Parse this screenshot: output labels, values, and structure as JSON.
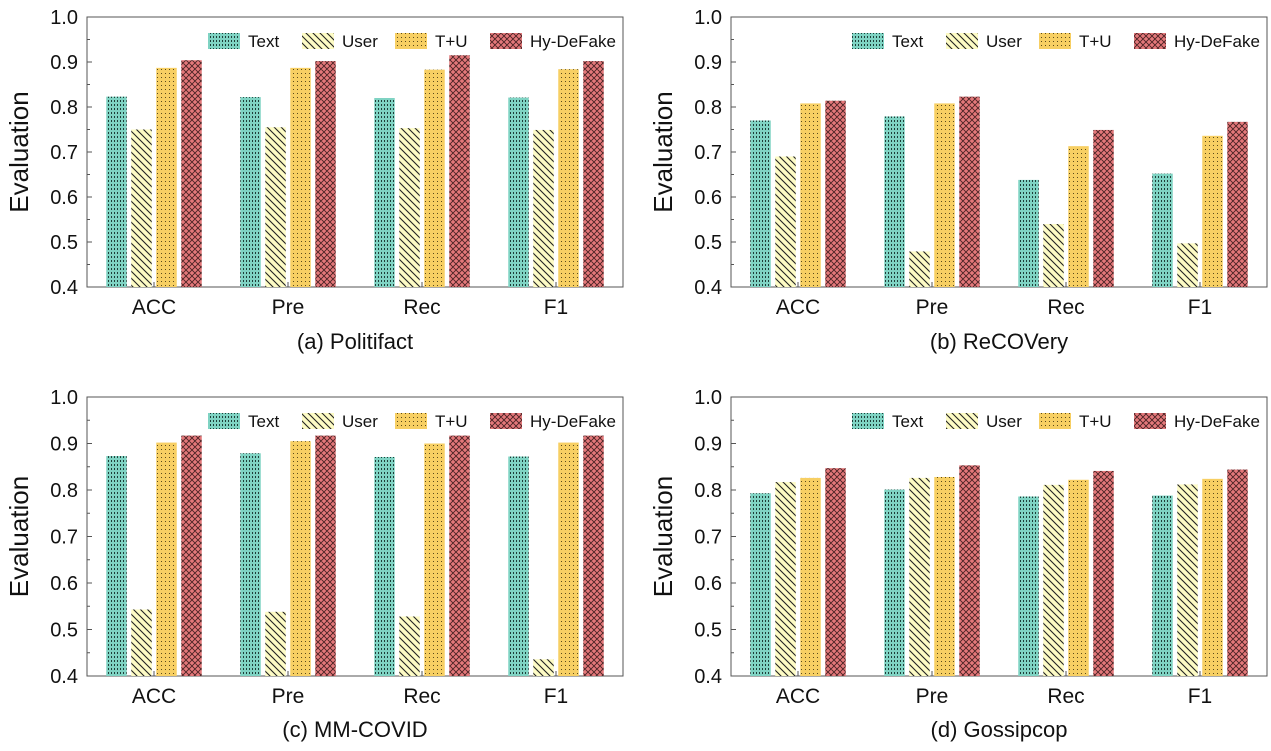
{
  "figure": {
    "colors": {
      "Text": "#7fd3c3",
      "User": "#fdfbc4",
      "T+U": "#f7cf63",
      "Hy-DeFake": "#e4787a"
    },
    "patterns": {
      "Text": "dense-dots",
      "User": "diagonal-lines",
      "T+U": "fine-dots",
      "Hy-DeFake": "crosshatch"
    }
  },
  "chart_data": [
    {
      "type": "bar",
      "caption": "(a) Politifact",
      "ylabel": "Evaluation",
      "ylim": [
        0.4,
        1.0
      ],
      "yticks": [
        "0.4",
        "0.5",
        "0.6",
        "0.7",
        "0.8",
        "0.9",
        "1.0"
      ],
      "legend_position": "top",
      "categories": [
        "ACC",
        "Pre",
        "Rec",
        "F1"
      ],
      "series": [
        {
          "name": "Text",
          "values": [
            0.823,
            0.822,
            0.82,
            0.821
          ]
        },
        {
          "name": "User",
          "values": [
            0.75,
            0.755,
            0.753,
            0.749
          ]
        },
        {
          "name": "T+U",
          "values": [
            0.887,
            0.887,
            0.883,
            0.884
          ]
        },
        {
          "name": "Hy-DeFake",
          "values": [
            0.904,
            0.902,
            0.915,
            0.902
          ]
        }
      ]
    },
    {
      "type": "bar",
      "caption": "(b) ReCOVery",
      "ylabel": "Evaluation",
      "ylim": [
        0.4,
        1.0
      ],
      "yticks": [
        "0.4",
        "0.5",
        "0.6",
        "0.7",
        "0.8",
        "0.9",
        "1.0"
      ],
      "legend_position": "top",
      "categories": [
        "ACC",
        "Pre",
        "Rec",
        "F1"
      ],
      "series": [
        {
          "name": "Text",
          "values": [
            0.77,
            0.779,
            0.638,
            0.652
          ]
        },
        {
          "name": "User",
          "values": [
            0.69,
            0.479,
            0.54,
            0.497
          ]
        },
        {
          "name": "T+U",
          "values": [
            0.808,
            0.808,
            0.713,
            0.736
          ]
        },
        {
          "name": "Hy-DeFake",
          "values": [
            0.814,
            0.823,
            0.749,
            0.767
          ]
        }
      ]
    },
    {
      "type": "bar",
      "caption": "(c) MM-COVID",
      "ylabel": "Evaluation",
      "ylim": [
        0.4,
        1.0
      ],
      "yticks": [
        "0.4",
        "0.5",
        "0.6",
        "0.7",
        "0.8",
        "0.9",
        "1.0"
      ],
      "legend_position": "top",
      "categories": [
        "ACC",
        "Pre",
        "Rec",
        "F1"
      ],
      "series": [
        {
          "name": "Text",
          "values": [
            0.873,
            0.879,
            0.871,
            0.872
          ]
        },
        {
          "name": "User",
          "values": [
            0.543,
            0.538,
            0.528,
            0.436
          ]
        },
        {
          "name": "T+U",
          "values": [
            0.902,
            0.905,
            0.9,
            0.902
          ]
        },
        {
          "name": "Hy-DeFake",
          "values": [
            0.917,
            0.917,
            0.917,
            0.917
          ]
        }
      ]
    },
    {
      "type": "bar",
      "caption": "(d) Gossipcop",
      "ylabel": "Evaluation",
      "ylim": [
        0.4,
        1.0
      ],
      "yticks": [
        "0.4",
        "0.5",
        "0.6",
        "0.7",
        "0.8",
        "0.9",
        "1.0"
      ],
      "legend_position": "top",
      "categories": [
        "ACC",
        "Pre",
        "Rec",
        "F1"
      ],
      "series": [
        {
          "name": "Text",
          "values": [
            0.793,
            0.801,
            0.786,
            0.788
          ]
        },
        {
          "name": "User",
          "values": [
            0.817,
            0.826,
            0.811,
            0.812
          ]
        },
        {
          "name": "T+U",
          "values": [
            0.826,
            0.828,
            0.822,
            0.824
          ]
        },
        {
          "name": "Hy-DeFake",
          "values": [
            0.847,
            0.853,
            0.841,
            0.844
          ]
        }
      ]
    }
  ]
}
